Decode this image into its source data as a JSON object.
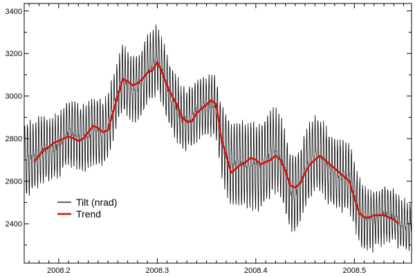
{
  "chart_data": {
    "type": "line",
    "title": "",
    "xlabel": "",
    "ylabel": "",
    "xlim": [
      2008.165,
      2008.558
    ],
    "ylim": [
      2215,
      3435
    ],
    "x_ticks": [
      2008.2,
      2008.3,
      2008.4,
      2008.5
    ],
    "x_tick_labels": [
      "2008.2",
      "2008.3",
      "2008.4",
      "2008.5"
    ],
    "y_ticks": [
      2400,
      2600,
      2800,
      3000,
      3200,
      3400
    ],
    "y_tick_labels": [
      "2400",
      "2600",
      "2800",
      "3000",
      "3200",
      "3400"
    ],
    "grid": false,
    "legend_position": "lower-left",
    "colors": {
      "tilt": "#000000",
      "trend": "#d01010"
    },
    "series": [
      {
        "name": "Tilt (nrad)",
        "style": "oscillating",
        "amplitude_envelope": {
          "x": [
            2008.165,
            2008.19,
            2008.24,
            2008.27,
            2008.3,
            2008.33,
            2008.36,
            2008.37,
            2008.41,
            2008.45,
            2008.5,
            2008.52,
            2008.555
          ],
          "half_range": [
            180,
            150,
            160,
            150,
            160,
            150,
            140,
            200,
            210,
            180,
            160,
            140,
            110
          ]
        }
      },
      {
        "name": "Trend",
        "x": [
          2008.175,
          2008.18,
          2008.185,
          2008.19,
          2008.195,
          2008.2,
          2008.205,
          2008.21,
          2008.215,
          2008.22,
          2008.225,
          2008.23,
          2008.235,
          2008.24,
          2008.245,
          2008.25,
          2008.255,
          2008.26,
          2008.265,
          2008.27,
          2008.275,
          2008.28,
          2008.285,
          2008.29,
          2008.295,
          2008.3,
          2008.305,
          2008.31,
          2008.315,
          2008.32,
          2008.325,
          2008.33,
          2008.335,
          2008.34,
          2008.345,
          2008.35,
          2008.355,
          2008.36,
          2008.365,
          2008.37,
          2008.375,
          2008.38,
          2008.385,
          2008.39,
          2008.395,
          2008.4,
          2008.405,
          2008.41,
          2008.415,
          2008.42,
          2008.425,
          2008.43,
          2008.435,
          2008.44,
          2008.445,
          2008.45,
          2008.455,
          2008.46,
          2008.465,
          2008.47,
          2008.475,
          2008.48,
          2008.485,
          2008.49,
          2008.495,
          2008.5,
          2008.505,
          2008.51,
          2008.515,
          2008.52,
          2008.525,
          2008.53,
          2008.535,
          2008.54,
          2008.545
        ],
        "values": [
          2690,
          2720,
          2750,
          2760,
          2780,
          2790,
          2800,
          2810,
          2800,
          2790,
          2800,
          2830,
          2860,
          2850,
          2830,
          2840,
          2920,
          3000,
          3080,
          3070,
          3050,
          3060,
          3080,
          3110,
          3120,
          3160,
          3110,
          3050,
          3000,
          2960,
          2900,
          2880,
          2880,
          2920,
          2940,
          2960,
          2980,
          2960,
          2800,
          2720,
          2640,
          2660,
          2680,
          2690,
          2710,
          2700,
          2680,
          2690,
          2700,
          2720,
          2700,
          2650,
          2580,
          2570,
          2590,
          2640,
          2680,
          2700,
          2720,
          2700,
          2680,
          2660,
          2640,
          2620,
          2600,
          2520,
          2450,
          2430,
          2430,
          2440,
          2440,
          2440,
          2430,
          2420,
          2400
        ]
      }
    ]
  }
}
